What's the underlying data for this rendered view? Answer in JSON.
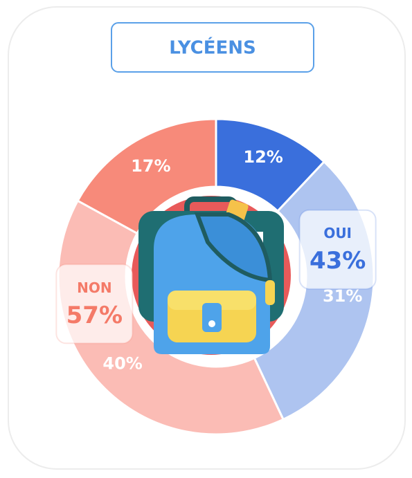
{
  "chart_data": {
    "type": "donut",
    "title": "LYCÉENS",
    "categories": [
      null,
      null,
      null,
      null
    ],
    "values": [
      12,
      31,
      40,
      17
    ],
    "value_labels": [
      "12%",
      "31%",
      "40%",
      "17%"
    ],
    "colors": [
      "#3a6fdc",
      "#aec4f0",
      "#fbbcb5",
      "#f78a7a"
    ],
    "groups": [
      {
        "name": "OUI",
        "value": 43,
        "value_label": "43%",
        "color": "#3a6fdc"
      },
      {
        "name": "NON",
        "value": 57,
        "value_label": "57%",
        "color": "#f47a68"
      }
    ]
  }
}
